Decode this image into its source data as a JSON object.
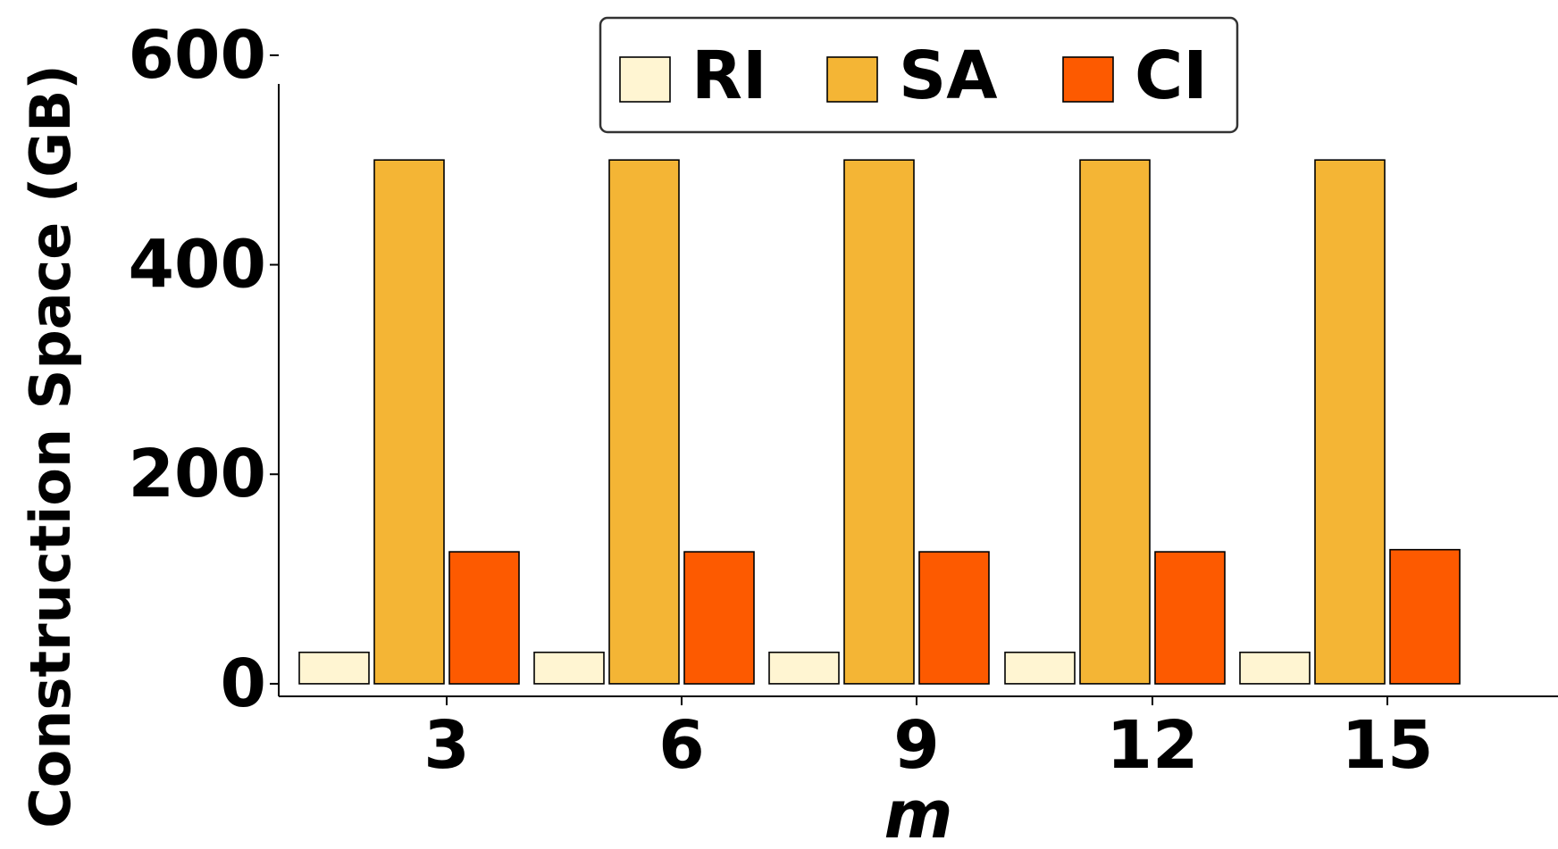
{
  "chart_data": {
    "type": "bar",
    "title": "",
    "xlabel": "m",
    "ylabel": "Construction Space (GB)",
    "categories": [
      "3",
      "6",
      "9",
      "12",
      "15"
    ],
    "series": [
      {
        "name": "RI",
        "values": [
          30,
          30,
          30,
          30,
          30
        ],
        "color": "#fff5d2"
      },
      {
        "name": "SA",
        "values": [
          500,
          500,
          500,
          500,
          500
        ],
        "color": "#f4b535"
      },
      {
        "name": "CI",
        "values": [
          126,
          126,
          126,
          126,
          128
        ],
        "color": "#fd5a00"
      }
    ],
    "ylim": [
      -12,
      605
    ],
    "yticks": [
      0,
      200,
      400,
      600
    ],
    "grid": false,
    "legend_position": "top-center"
  }
}
